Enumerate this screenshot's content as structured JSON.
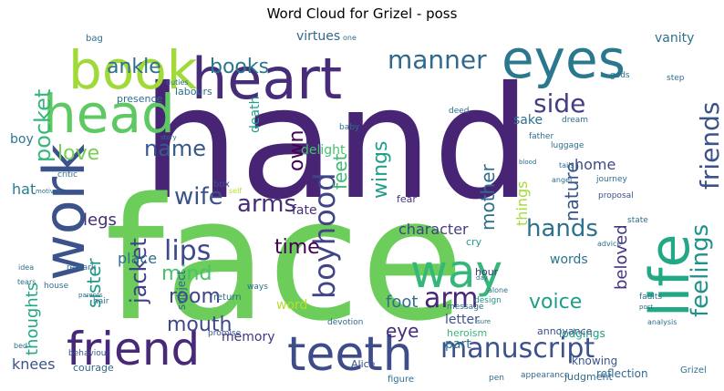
{
  "title": "Word Cloud for Grizel - poss",
  "words": [
    {
      "text": "hand",
      "color": "#482475"
    },
    {
      "text": "face",
      "color": "#6ccd5a"
    },
    {
      "text": "heart",
      "color": "#472c7a"
    },
    {
      "text": "eyes",
      "color": "#2a788e"
    },
    {
      "text": "book",
      "color": "#a0da39"
    },
    {
      "text": "head",
      "color": "#5ec962"
    },
    {
      "text": "work",
      "color": "#3b528b"
    },
    {
      "text": "friend",
      "color": "#482878"
    },
    {
      "text": "teeth",
      "color": "#3e4c8a"
    },
    {
      "text": "way",
      "color": "#35b779"
    },
    {
      "text": "life",
      "color": "#22a884"
    },
    {
      "text": "manuscript",
      "color": "#3b528b"
    },
    {
      "text": "hands",
      "color": "#2c728e"
    },
    {
      "text": "side",
      "color": "#433e85"
    },
    {
      "text": "manner",
      "color": "#31688e"
    },
    {
      "text": "boyhood",
      "color": "#414487"
    },
    {
      "text": "friends",
      "color": "#3b528b"
    },
    {
      "text": "feelings",
      "color": "#21918c"
    },
    {
      "text": "lips",
      "color": "#3e4989"
    },
    {
      "text": "arm",
      "color": "#482677"
    },
    {
      "text": "wife",
      "color": "#3b528b"
    },
    {
      "text": "arms",
      "color": "#472d7b"
    },
    {
      "text": "books",
      "color": "#2a788e"
    },
    {
      "text": "pocket",
      "color": "#35b779"
    },
    {
      "text": "ankle",
      "color": "#2e6e8e"
    },
    {
      "text": "name",
      "color": "#38598c"
    },
    {
      "text": "love",
      "color": "#75d054"
    },
    {
      "text": "wings",
      "color": "#1f9e89"
    },
    {
      "text": "feet",
      "color": "#3fbc73"
    },
    {
      "text": "own",
      "color": "#440154"
    },
    {
      "text": "mother",
      "color": "#2e6e8e"
    },
    {
      "text": "nature",
      "color": "#39568c"
    },
    {
      "text": "beloved",
      "color": "#46337f"
    },
    {
      "text": "jacket",
      "color": "#424186"
    },
    {
      "text": "mind",
      "color": "#4ac16d"
    },
    {
      "text": "room",
      "color": "#414487"
    },
    {
      "text": "mouth",
      "color": "#3e4989"
    },
    {
      "text": "voice",
      "color": "#1f9e89"
    },
    {
      "text": "time",
      "color": "#440154"
    },
    {
      "text": "legs",
      "color": "#472c7a"
    },
    {
      "text": "hat",
      "color": "#297b8e"
    },
    {
      "text": "sister",
      "color": "#1f9a8a"
    },
    {
      "text": "eye",
      "color": "#472c7a"
    },
    {
      "text": "foot",
      "color": "#2e6e8e"
    },
    {
      "text": "thoughts",
      "color": "#22a884"
    },
    {
      "text": "character",
      "color": "#433e85"
    },
    {
      "text": "home",
      "color": "#3e4989"
    },
    {
      "text": "delight",
      "color": "#46c06f"
    },
    {
      "text": "fate",
      "color": "#472d7b"
    },
    {
      "text": "place",
      "color": "#2e6e8e"
    },
    {
      "text": "memory",
      "color": "#46337f"
    },
    {
      "text": "knees",
      "color": "#3b528b"
    },
    {
      "text": "words",
      "color": "#2c728e"
    },
    {
      "text": "letter",
      "color": "#3b528b"
    },
    {
      "text": "things",
      "color": "#a5db36"
    },
    {
      "text": "part",
      "color": "#2c728e"
    },
    {
      "text": "subject",
      "color": "#31688e"
    },
    {
      "text": "word",
      "color": "#b5de2b"
    },
    {
      "text": "virtues",
      "color": "#31688e"
    },
    {
      "text": "vanity",
      "color": "#2c728e"
    },
    {
      "text": "sake",
      "color": "#2c728e"
    },
    {
      "text": "death",
      "color": "#1f9e89"
    },
    {
      "text": "boy",
      "color": "#2a788e"
    },
    {
      "text": "lodgings",
      "color": "#1fa187"
    },
    {
      "text": "annoyance",
      "color": "#3b528b"
    },
    {
      "text": "knowing",
      "color": "#3b528b"
    },
    {
      "text": "reflection",
      "color": "#31688e"
    },
    {
      "text": "appearance",
      "color": "#31688e"
    },
    {
      "text": "judgment",
      "color": "#2e6e8e"
    },
    {
      "text": "figure",
      "color": "#2e6e8e"
    },
    {
      "text": "Alice",
      "color": "#3b528b"
    },
    {
      "text": "Grizel",
      "color": "#2e6e8e"
    },
    {
      "text": "courage",
      "color": "#31688e"
    },
    {
      "text": "behaviour",
      "color": "#3b528b"
    },
    {
      "text": "promise",
      "color": "#3b528b"
    },
    {
      "text": "heroism",
      "color": "#35b779"
    },
    {
      "text": "message",
      "color": "#2e6e8e"
    },
    {
      "text": "devotion",
      "color": "#31688e"
    },
    {
      "text": "design",
      "color": "#21918c"
    },
    {
      "text": "hour",
      "color": "#46337f"
    },
    {
      "text": "fear",
      "color": "#46337f"
    },
    {
      "text": "cry",
      "color": "#1f9e89"
    },
    {
      "text": "dream",
      "color": "#2e6e8e"
    },
    {
      "text": "presence",
      "color": "#2e6e8e"
    },
    {
      "text": "labours",
      "color": "#2e6e8e"
    },
    {
      "text": "father",
      "color": "#2e6e8e"
    },
    {
      "text": "luggage",
      "color": "#2e6e8e"
    },
    {
      "text": "baby",
      "color": "#2e6e8e"
    },
    {
      "text": "critic",
      "color": "#2e6e8e"
    },
    {
      "text": "box",
      "color": "#3b528b"
    },
    {
      "text": "state",
      "color": "#2e6e8e"
    },
    {
      "text": "journey",
      "color": "#2e6e8e"
    },
    {
      "text": "proposal",
      "color": "#3b528b"
    },
    {
      "text": "faults",
      "color": "#2e6e8e"
    },
    {
      "text": "advice",
      "color": "#2e6e8e"
    },
    {
      "text": "analysis",
      "color": "#2e6e8e"
    },
    {
      "text": "return",
      "color": "#2e6e8e"
    },
    {
      "text": "house",
      "color": "#2e6e8e"
    },
    {
      "text": "remark",
      "color": "#2e6e8e"
    },
    {
      "text": "bag",
      "color": "#2e6e8e"
    },
    {
      "text": "gods",
      "color": "#2e6e8e"
    },
    {
      "text": "deed",
      "color": "#2e6e8e"
    },
    {
      "text": "step",
      "color": "#2e6e8e"
    },
    {
      "text": "duties",
      "color": "#2e6e8e"
    },
    {
      "text": "one",
      "color": "#2e6e8e"
    },
    {
      "text": "pen",
      "color": "#2e6e8e"
    },
    {
      "text": "alone",
      "color": "#2e6e8e"
    },
    {
      "text": "angel",
      "color": "#2e6e8e"
    },
    {
      "text": "tails",
      "color": "#2e6e8e"
    },
    {
      "text": "blood",
      "color": "#2e6e8e"
    },
    {
      "text": "self",
      "color": "#b5de2b"
    },
    {
      "text": "story",
      "color": "#2e6e8e"
    },
    {
      "text": "motives",
      "color": "#2e6e8e"
    },
    {
      "text": "hair",
      "color": "#2e6e8e"
    },
    {
      "text": "tears",
      "color": "#2e6e8e"
    },
    {
      "text": "parents",
      "color": "#2e6e8e"
    },
    {
      "text": "ways",
      "color": "#2e6e8e"
    },
    {
      "text": "day",
      "color": "#2e6e8e"
    },
    {
      "text": "post",
      "color": "#2e6e8e"
    },
    {
      "text": "bed",
      "color": "#2e6e8e"
    },
    {
      "text": "idea",
      "color": "#2e6e8e"
    },
    {
      "text": "sure",
      "color": "#2e6e8e"
    }
  ]
}
